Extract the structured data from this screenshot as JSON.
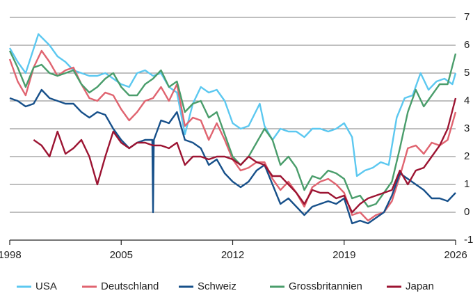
{
  "chart_data": {
    "type": "line",
    "x": [
      1998,
      1998.5,
      1999,
      1999.5,
      2000,
      2000.5,
      2001,
      2001.5,
      2002,
      2002.5,
      2003,
      2003.5,
      2004,
      2004.5,
      2005,
      2005.5,
      2006,
      2006.5,
      2007,
      2007.5,
      2008,
      2008.5,
      2009,
      2009.5,
      2010,
      2010.5,
      2011,
      2011.5,
      2012,
      2012.5,
      2013,
      2013.5,
      2014,
      2014.5,
      2015,
      2015.5,
      2016,
      2016.5,
      2017,
      2017.5,
      2018,
      2018.5,
      2019,
      2019.5,
      2020,
      2020.5,
      2021,
      2021.5,
      2022,
      2022.5,
      2023,
      2023.5,
      2024,
      2024.5,
      2025,
      2025.5,
      2026
    ],
    "xlim": [
      1998,
      2026
    ],
    "xticks": [
      1998,
      2005,
      2012,
      2019,
      2026
    ],
    "ylim": [
      -1,
      7
    ],
    "yticks": [
      -1,
      0,
      1,
      2,
      3,
      4,
      5,
      6,
      7
    ],
    "grid": true,
    "legend": "bottom",
    "series": [
      {
        "name": "USA",
        "color": "#5cc8f0",
        "x": [
          1998,
          1998.5,
          1999,
          1999.8,
          2000.5,
          2001,
          2001.5,
          2002,
          2002.5,
          2003,
          2003.5,
          2004,
          2004.5,
          2005,
          2005.5,
          2006,
          2006.5,
          2007,
          2007.5,
          2008,
          2008.5,
          2009,
          2009.5,
          2010,
          2010.5,
          2011,
          2011.5,
          2012,
          2012.5,
          2013,
          2013.7,
          2014,
          2014.5,
          2015,
          2015.5,
          2016,
          2016.5,
          2017,
          2017.5,
          2018,
          2018.5,
          2019,
          2019.5,
          2019.8,
          2020.3,
          2020.8,
          2021.3,
          2021.8,
          2022.3,
          2022.8,
          2023.3,
          2023.8,
          2024.3,
          2024.8,
          2025.3,
          2025.8,
          2026
        ],
        "values": [
          5.9,
          5.4,
          5.0,
          6.4,
          6.0,
          5.6,
          5.4,
          5.1,
          5.0,
          4.9,
          4.9,
          5.0,
          4.8,
          4.6,
          4.5,
          5.0,
          5.1,
          4.9,
          5.0,
          4.5,
          4.3,
          2.8,
          3.9,
          4.5,
          4.3,
          4.4,
          4.0,
          3.2,
          3.0,
          3.1,
          3.9,
          3.1,
          2.6,
          3.0,
          2.9,
          2.9,
          2.7,
          3.0,
          3.0,
          2.9,
          3.0,
          3.2,
          2.7,
          1.3,
          1.5,
          1.6,
          1.8,
          1.7,
          3.4,
          4.1,
          4.2,
          5.0,
          4.4,
          4.7,
          4.8,
          4.6,
          5.0
        ]
      },
      {
        "name": "Deutschland",
        "color": "#e06470",
        "values": [
          5.5,
          4.7,
          4.2,
          5.2,
          5.8,
          5.4,
          4.9,
          5.1,
          5.2,
          4.6,
          4.1,
          4.0,
          4.3,
          4.2,
          3.7,
          3.3,
          3.6,
          4.0,
          4.1,
          4.5,
          4.0,
          4.6,
          3.1,
          3.4,
          3.3,
          2.6,
          3.2,
          2.6,
          1.9,
          1.5,
          1.6,
          1.8,
          1.8,
          1.2,
          0.8,
          1.1,
          0.7,
          0.2,
          0.9,
          1.1,
          1.2,
          1.0,
          0.7,
          -0.1,
          0.0,
          -0.3,
          -0.1,
          0.0,
          0.4,
          1.3,
          2.3,
          2.4,
          2.1,
          2.5,
          2.4,
          2.6,
          3.6
        ]
      },
      {
        "name": "Schweiz",
        "color": "#17508a",
        "x": [
          1998,
          1998.5,
          1999,
          1999.5,
          2000,
          2000.5,
          2001,
          2001.5,
          2002,
          2002.5,
          2003,
          2003.5,
          2004,
          2004.5,
          2005,
          2005.5,
          2006,
          2006.5,
          2006.95,
          2007,
          2007.05,
          2007.5,
          2008,
          2008.5,
          2009,
          2009.5,
          2010,
          2010.5,
          2011,
          2011.5,
          2012,
          2012.5,
          2013,
          2013.5,
          2014,
          2014.5,
          2015,
          2015.5,
          2016,
          2016.5,
          2017,
          2017.5,
          2018,
          2018.5,
          2019,
          2019.5,
          2020,
          2020.5,
          2021,
          2021.5,
          2022,
          2022.5,
          2023,
          2023.5,
          2024,
          2024.5,
          2025,
          2025.5,
          2026
        ],
        "values": [
          4.1,
          4.0,
          3.8,
          3.9,
          4.4,
          4.1,
          4.0,
          3.9,
          3.9,
          3.6,
          3.4,
          3.6,
          3.5,
          3.0,
          2.6,
          2.3,
          2.5,
          2.6,
          2.6,
          0.0,
          2.6,
          3.3,
          3.2,
          3.6,
          2.6,
          2.5,
          2.3,
          1.7,
          1.9,
          1.4,
          1.1,
          0.9,
          1.1,
          1.5,
          1.7,
          1.0,
          0.3,
          0.5,
          0.2,
          -0.1,
          0.2,
          0.3,
          0.4,
          0.3,
          0.5,
          -0.4,
          -0.3,
          -0.4,
          -0.2,
          0.0,
          0.6,
          1.4,
          1.2,
          1.0,
          0.8,
          0.5,
          0.5,
          0.4,
          0.7
        ]
      },
      {
        "name": "Grossbritannien",
        "color": "#4a9d6b",
        "values": [
          5.8,
          5.2,
          4.5,
          5.2,
          5.3,
          5.0,
          4.9,
          5.0,
          5.1,
          4.6,
          4.3,
          4.5,
          4.8,
          5.0,
          4.5,
          4.2,
          4.2,
          4.6,
          4.8,
          5.1,
          4.5,
          4.7,
          3.6,
          3.9,
          4.0,
          3.4,
          3.6,
          2.8,
          2.0,
          1.7,
          2.0,
          2.5,
          3.0,
          2.6,
          1.7,
          2.0,
          1.6,
          0.8,
          1.3,
          1.2,
          1.5,
          1.4,
          1.2,
          0.5,
          0.6,
          0.2,
          0.3,
          0.7,
          1.1,
          2.3,
          3.6,
          4.4,
          3.8,
          4.2,
          4.6,
          4.6,
          5.7
        ]
      },
      {
        "name": "Japan",
        "color": "#9c1432",
        "x": [
          1999.5,
          2000,
          2000.5,
          2001,
          2001.5,
          2002,
          2002.5,
          2003,
          2003.5,
          2004,
          2004.5,
          2005,
          2005.5,
          2006,
          2006.5,
          2007,
          2007.5,
          2008,
          2008.5,
          2009,
          2009.5,
          2010,
          2010.5,
          2011,
          2011.5,
          2012,
          2012.5,
          2013,
          2013.5,
          2014,
          2014.5,
          2015,
          2015.5,
          2016,
          2016.5,
          2017,
          2017.5,
          2018,
          2018.5,
          2019,
          2019.5,
          2020,
          2020.5,
          2021,
          2021.5,
          2022,
          2022.5,
          2023,
          2023.5,
          2024,
          2024.5,
          2025,
          2025.5,
          2026
        ],
        "values": [
          2.6,
          2.4,
          2.0,
          2.9,
          2.1,
          2.3,
          2.6,
          2.0,
          1.0,
          2.0,
          2.9,
          2.5,
          2.3,
          2.5,
          2.5,
          2.4,
          2.4,
          2.3,
          2.5,
          1.7,
          2.0,
          2.0,
          1.9,
          2.0,
          2.0,
          1.9,
          1.7,
          2.0,
          1.8,
          1.7,
          1.3,
          1.3,
          1.0,
          0.7,
          0.3,
          0.8,
          0.7,
          0.7,
          0.5,
          0.6,
          0.0,
          0.3,
          0.5,
          0.6,
          0.7,
          0.8,
          1.5,
          1.0,
          1.5,
          1.6,
          2.0,
          2.4,
          3.0,
          4.1
        ]
      }
    ]
  }
}
